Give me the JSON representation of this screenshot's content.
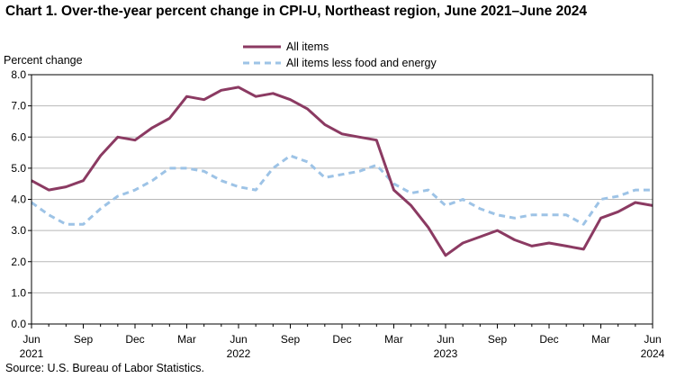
{
  "header": {
    "title": "Chart 1. Over-the-year percent change in CPI-U, Northeast region, June 2021–June 2024"
  },
  "footer": {
    "source": "Source: U.S. Bureau of Labor Statistics."
  },
  "chart_data": {
    "type": "line",
    "title": "Chart 1. Over-the-year percent change in CPI-U, Northeast region, June 2021–June 2024",
    "xlabel": "",
    "ylabel": "Percent change",
    "ylim": [
      0,
      8
    ],
    "yticks": [
      "0.0",
      "1.0",
      "2.0",
      "3.0",
      "4.0",
      "5.0",
      "6.0",
      "7.0",
      "8.0"
    ],
    "grid": true,
    "legend_position": "top-center",
    "x_labels": [
      {
        "index": 0,
        "month": "Jun",
        "year": "2021"
      },
      {
        "index": 3,
        "month": "Sep",
        "year": ""
      },
      {
        "index": 6,
        "month": "Dec",
        "year": ""
      },
      {
        "index": 9,
        "month": "Mar",
        "year": ""
      },
      {
        "index": 12,
        "month": "Jun",
        "year": "2022"
      },
      {
        "index": 15,
        "month": "Sep",
        "year": ""
      },
      {
        "index": 18,
        "month": "Dec",
        "year": ""
      },
      {
        "index": 21,
        "month": "Mar",
        "year": ""
      },
      {
        "index": 24,
        "month": "Jun",
        "year": "2023"
      },
      {
        "index": 27,
        "month": "Sep",
        "year": ""
      },
      {
        "index": 30,
        "month": "Dec",
        "year": ""
      },
      {
        "index": 33,
        "month": "Mar",
        "year": ""
      },
      {
        "index": 36,
        "month": "Jun",
        "year": "2024"
      }
    ],
    "series": [
      {
        "name": "All items",
        "color": "#8B3A62",
        "style": "solid",
        "values": [
          4.6,
          4.3,
          4.4,
          4.6,
          5.4,
          6.0,
          5.9,
          6.3,
          6.6,
          7.3,
          7.2,
          7.5,
          7.6,
          7.3,
          7.4,
          7.2,
          6.9,
          6.4,
          6.1,
          6.0,
          5.9,
          4.3,
          3.8,
          3.1,
          2.2,
          2.6,
          2.8,
          3.0,
          2.7,
          2.5,
          2.6,
          2.5,
          2.4,
          3.4,
          3.6,
          3.9,
          3.8
        ]
      },
      {
        "name": "All items less food and energy",
        "color": "#9DC3E6",
        "style": "dashed",
        "values": [
          3.9,
          3.5,
          3.2,
          3.2,
          3.7,
          4.1,
          4.3,
          4.6,
          5.0,
          5.0,
          4.9,
          4.6,
          4.4,
          4.3,
          5.0,
          5.4,
          5.2,
          4.7,
          4.8,
          4.9,
          5.1,
          4.5,
          4.2,
          4.3,
          3.8,
          4.0,
          3.7,
          3.5,
          3.4,
          3.5,
          3.5,
          3.5,
          3.2,
          4.0,
          4.1,
          4.3,
          4.3
        ]
      }
    ]
  }
}
